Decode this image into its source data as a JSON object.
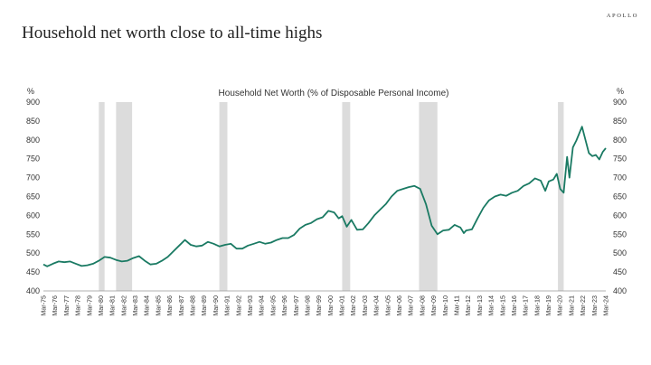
{
  "brand": "APOLLO",
  "headline": "Household net worth close to all-time highs",
  "chart_data": {
    "type": "line",
    "title": "Household Net Worth (% of Disposable Personal Income)",
    "left_unit": "%",
    "right_unit": "%",
    "ylim": [
      400,
      900
    ],
    "yticks": [
      400,
      450,
      500,
      550,
      600,
      650,
      700,
      750,
      800,
      850,
      900
    ],
    "xlim": [
      1975.17,
      2024.17
    ],
    "grid": false,
    "line_color": "#1a7a63",
    "recession_color": "#dcdcdc",
    "xtick_labels": [
      "Mar-75",
      "Mar-76",
      "Mar-77",
      "Mar-78",
      "Mar-79",
      "Mar-80",
      "Mar-81",
      "Mar-82",
      "Mar-83",
      "Mar-84",
      "Mar-85",
      "Mar-86",
      "Mar-87",
      "Mar-88",
      "Mar-89",
      "Mar-90",
      "Mar-91",
      "Mar-92",
      "Mar-93",
      "Mar-94",
      "Mar-95",
      "Mar-96",
      "Mar-97",
      "Mar-98",
      "Mar-99",
      "Mar-00",
      "Mar-01",
      "Mar-02",
      "Mar-03",
      "Mar-04",
      "Mar-05",
      "Mar-06",
      "Mar-07",
      "Mar-08",
      "Mar-09",
      "Mar-10",
      "Mar-11",
      "Mar-12",
      "Mar-13",
      "Mar-14",
      "Mar-15",
      "Mar-16",
      "Mar-17",
      "Mar-18",
      "Mar-19",
      "Mar-20",
      "Mar-21",
      "Mar-22",
      "Mar-23",
      "Mar-24"
    ],
    "recessions": [
      [
        1980.0,
        1980.5
      ],
      [
        1981.5,
        1982.9
      ],
      [
        1990.5,
        1991.2
      ],
      [
        2001.2,
        2001.9
      ],
      [
        2007.9,
        2009.5
      ],
      [
        2020.0,
        2020.5
      ]
    ],
    "series": [
      {
        "values": [
          [
            1975.17,
            470
          ],
          [
            1975.5,
            465
          ],
          [
            1976.0,
            472
          ],
          [
            1976.5,
            478
          ],
          [
            1977.0,
            476
          ],
          [
            1977.5,
            478
          ],
          [
            1978.0,
            472
          ],
          [
            1978.5,
            466
          ],
          [
            1979.0,
            468
          ],
          [
            1979.5,
            472
          ],
          [
            1980.0,
            480
          ],
          [
            1980.5,
            490
          ],
          [
            1981.0,
            488
          ],
          [
            1981.5,
            482
          ],
          [
            1982.0,
            478
          ],
          [
            1982.5,
            480
          ],
          [
            1983.0,
            487
          ],
          [
            1983.5,
            492
          ],
          [
            1984.0,
            480
          ],
          [
            1984.5,
            470
          ],
          [
            1985.0,
            472
          ],
          [
            1985.5,
            480
          ],
          [
            1986.0,
            490
          ],
          [
            1986.5,
            505
          ],
          [
            1987.0,
            520
          ],
          [
            1987.5,
            535
          ],
          [
            1988.0,
            522
          ],
          [
            1988.5,
            518
          ],
          [
            1989.0,
            520
          ],
          [
            1989.5,
            530
          ],
          [
            1990.0,
            525
          ],
          [
            1990.5,
            518
          ],
          [
            1991.0,
            522
          ],
          [
            1991.5,
            525
          ],
          [
            1992.0,
            512
          ],
          [
            1992.5,
            512
          ],
          [
            1993.0,
            520
          ],
          [
            1993.5,
            525
          ],
          [
            1994.0,
            530
          ],
          [
            1994.5,
            525
          ],
          [
            1995.0,
            528
          ],
          [
            1995.5,
            535
          ],
          [
            1996.0,
            540
          ],
          [
            1996.5,
            540
          ],
          [
            1997.0,
            548
          ],
          [
            1997.5,
            565
          ],
          [
            1998.0,
            575
          ],
          [
            1998.5,
            580
          ],
          [
            1999.0,
            590
          ],
          [
            1999.5,
            595
          ],
          [
            2000.0,
            612
          ],
          [
            2000.5,
            608
          ],
          [
            2000.9,
            592
          ],
          [
            2001.2,
            598
          ],
          [
            2001.6,
            570
          ],
          [
            2002.0,
            588
          ],
          [
            2002.5,
            562
          ],
          [
            2003.0,
            563
          ],
          [
            2003.5,
            580
          ],
          [
            2004.0,
            600
          ],
          [
            2004.5,
            615
          ],
          [
            2005.0,
            630
          ],
          [
            2005.5,
            650
          ],
          [
            2006.0,
            665
          ],
          [
            2006.5,
            670
          ],
          [
            2007.0,
            675
          ],
          [
            2007.5,
            678
          ],
          [
            2008.0,
            670
          ],
          [
            2008.5,
            630
          ],
          [
            2009.0,
            573
          ],
          [
            2009.5,
            550
          ],
          [
            2010.0,
            560
          ],
          [
            2010.5,
            562
          ],
          [
            2011.0,
            575
          ],
          [
            2011.5,
            568
          ],
          [
            2011.8,
            553
          ],
          [
            2012.0,
            560
          ],
          [
            2012.5,
            563
          ],
          [
            2013.0,
            592
          ],
          [
            2013.5,
            620
          ],
          [
            2014.0,
            640
          ],
          [
            2014.5,
            650
          ],
          [
            2015.0,
            655
          ],
          [
            2015.5,
            652
          ],
          [
            2016.0,
            660
          ],
          [
            2016.5,
            665
          ],
          [
            2017.0,
            678
          ],
          [
            2017.5,
            685
          ],
          [
            2018.0,
            698
          ],
          [
            2018.5,
            692
          ],
          [
            2018.9,
            665
          ],
          [
            2019.2,
            690
          ],
          [
            2019.6,
            695
          ],
          [
            2019.9,
            710
          ],
          [
            2020.2,
            670
          ],
          [
            2020.5,
            660
          ],
          [
            2020.8,
            755
          ],
          [
            2021.0,
            700
          ],
          [
            2021.3,
            780
          ],
          [
            2021.6,
            798
          ],
          [
            2021.9,
            820
          ],
          [
            2022.1,
            835
          ],
          [
            2022.4,
            800
          ],
          [
            2022.7,
            765
          ],
          [
            2023.0,
            757
          ],
          [
            2023.3,
            760
          ],
          [
            2023.6,
            748
          ],
          [
            2023.9,
            768
          ],
          [
            2024.17,
            778
          ]
        ]
      }
    ]
  }
}
